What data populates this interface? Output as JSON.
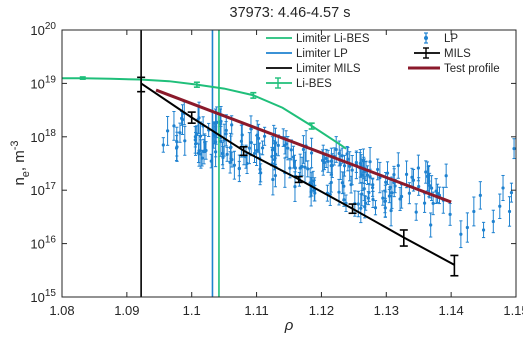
{
  "chart_data": {
    "type": "scatter",
    "title": "37973: 4.46-4.57 s",
    "xlabel": "ρ",
    "ylabel": "n_e, m^-3",
    "ylabel_parts": {
      "n": "n",
      "e": "e",
      "mid": ", m",
      "exp": "-3"
    },
    "xlim": [
      1.08,
      1.15
    ],
    "ylim": [
      1000000000000000.0,
      1e+20
    ],
    "yscale": "log",
    "grid": false,
    "legend_position": "top-right",
    "x_ticks": [
      {
        "v": 1.08,
        "label": "1.08"
      },
      {
        "v": 1.09,
        "label": "1.09"
      },
      {
        "v": 1.1,
        "label": "1.1"
      },
      {
        "v": 1.11,
        "label": "1.11"
      },
      {
        "v": 1.12,
        "label": "1.12"
      },
      {
        "v": 1.13,
        "label": "1.13"
      },
      {
        "v": 1.14,
        "label": "1.14"
      },
      {
        "v": 1.15,
        "label": "1.15"
      }
    ],
    "y_ticks": [
      {
        "v": 1000000000000000.0,
        "base": "10",
        "exp": "15"
      },
      {
        "v": 1e+16,
        "base": "10",
        "exp": "16"
      },
      {
        "v": 1e+17,
        "base": "10",
        "exp": "17"
      },
      {
        "v": 1e+18,
        "base": "10",
        "exp": "18"
      },
      {
        "v": 1e+19,
        "base": "10",
        "exp": "19"
      },
      {
        "v": 1e+20,
        "base": "10",
        "exp": "20"
      }
    ],
    "vlines": [
      {
        "name": "Limiter Li-BES",
        "x": 1.1042,
        "color": "#1fbf7a"
      },
      {
        "name": "Limiter LP",
        "x": 1.1032,
        "color": "#1f82d0"
      },
      {
        "name": "Limiter MILS",
        "x": 1.0922,
        "color": "#000000"
      }
    ],
    "series": [
      {
        "name": "Li-BES",
        "color": "#1fbf7a",
        "points": [
          {
            "x": 1.08,
            "y": 1.25e+19
          },
          {
            "x": 1.0832,
            "y": 1.25e+19
          },
          {
            "x": 1.0875,
            "y": 1.22e+19
          },
          {
            "x": 1.092,
            "y": 1.18e+19
          },
          {
            "x": 1.0965,
            "y": 1.1e+19
          },
          {
            "x": 1.1008,
            "y": 9.5e+18
          },
          {
            "x": 1.105,
            "y": 8e+18
          },
          {
            "x": 1.1095,
            "y": 6e+18
          },
          {
            "x": 1.114,
            "y": 3.5e+18
          },
          {
            "x": 1.1185,
            "y": 1.6e+18
          },
          {
            "x": 1.123,
            "y": 7e+17
          },
          {
            "x": 1.1238,
            "y": 6e+17
          }
        ],
        "err_points": [
          {
            "x": 1.0832,
            "y": 1.25e+19,
            "lo": 1.2e+19,
            "hi": 1.32e+19
          },
          {
            "x": 1.1008,
            "y": 9.5e+18,
            "lo": 8.5e+18,
            "hi": 1.05e+19
          },
          {
            "x": 1.1095,
            "y": 6e+18,
            "lo": 5.3e+18,
            "hi": 6.7e+18
          },
          {
            "x": 1.1185,
            "y": 1.6e+18,
            "lo": 1.4e+18,
            "hi": 1.8e+18
          }
        ]
      },
      {
        "name": "LP",
        "color": "#1f82d0",
        "trend": {
          "x0": 1.095,
          "y0": 1.6e+18,
          "x1": 1.14,
          "y1": 5e+16
        },
        "scatter_decades": 0.36,
        "count": 200,
        "outliers": [
          {
            "x": 1.1415,
            "y": 1.5e+16
          },
          {
            "x": 1.1425,
            "y": 2e+16
          },
          {
            "x": 1.1435,
            "y": 4e+16
          },
          {
            "x": 1.1445,
            "y": 8e+16
          },
          {
            "x": 1.145,
            "y": 1.8e+16
          },
          {
            "x": 1.1465,
            "y": 2.6e+16
          },
          {
            "x": 1.1475,
            "y": 5e+16
          },
          {
            "x": 1.148,
            "y": 1.1e+17
          },
          {
            "x": 1.149,
            "y": 4e+16
          },
          {
            "x": 1.1493,
            "y": 9e+16
          },
          {
            "x": 1.1497,
            "y": 6e+17
          }
        ]
      },
      {
        "name": "MILS",
        "color": "#000000",
        "points": [
          {
            "x": 1.0922,
            "y": 1e+19
          },
          {
            "x": 1.1,
            "y": 2.3e+18
          },
          {
            "x": 1.108,
            "y": 5.5e+17
          },
          {
            "x": 1.1165,
            "y": 1.6e+17
          },
          {
            "x": 1.1248,
            "y": 4.5e+16
          },
          {
            "x": 1.1327,
            "y": 1.3e+16
          },
          {
            "x": 1.1405,
            "y": 4000000000000000.0
          }
        ],
        "err": [
          {
            "x": 1.0922,
            "lo": 7e+18,
            "hi": 1.3e+19
          },
          {
            "x": 1.1,
            "lo": 1.8e+18,
            "hi": 2.9e+18
          },
          {
            "x": 1.108,
            "lo": 4.5e+17,
            "hi": 6.5e+17
          },
          {
            "x": 1.1165,
            "lo": 1.4e+17,
            "hi": 1.8e+17
          },
          {
            "x": 1.1248,
            "lo": 3.7e+16,
            "hi": 5.5e+16
          },
          {
            "x": 1.1327,
            "lo": 9000000000000000.0,
            "hi": 1.8e+16
          },
          {
            "x": 1.1405,
            "lo": 2500000000000000.0,
            "hi": 6000000000000000.0
          }
        ]
      },
      {
        "name": "Test profile",
        "color": "#8b1a2b",
        "points": [
          {
            "x": 1.0945,
            "y": 7.5e+18
          },
          {
            "x": 1.14,
            "y": 6e+16
          }
        ]
      }
    ],
    "legend": [
      {
        "label": "Limiter Li-BES",
        "color": "#1fbf7a",
        "style": "line"
      },
      {
        "label": "LP",
        "color": "#1f82d0",
        "style": "errdot"
      },
      {
        "label": "Limiter LP",
        "color": "#1f82d0",
        "style": "line"
      },
      {
        "label": "MILS",
        "color": "#000000",
        "style": "errline"
      },
      {
        "label": "Limiter MILS",
        "color": "#000000",
        "style": "line"
      },
      {
        "label": "Test profile",
        "color": "#8b1a2b",
        "style": "thick"
      },
      {
        "label": "Li-BES",
        "color": "#1fbf7a",
        "style": "errline"
      }
    ]
  }
}
